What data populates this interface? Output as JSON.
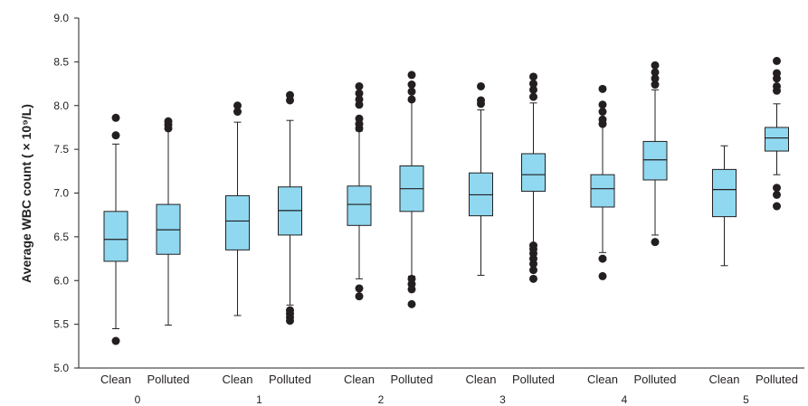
{
  "chart_data": {
    "type": "box",
    "ylabel": "Average WBC count ( × 10⁹/L)",
    "ylim": [
      5.0,
      9.0
    ],
    "yticks": [
      "5.0",
      "5.5",
      "6.0",
      "6.5",
      "7.0",
      "7.5",
      "8.0",
      "8.5",
      "9.0"
    ],
    "groups": [
      "0",
      "1",
      "2",
      "3",
      "4",
      "5"
    ],
    "categories": [
      "Clean",
      "Polluted"
    ],
    "colors": {
      "box_fill": "#8fd8f0",
      "stroke": "#231f20",
      "outlier": "#231f20"
    },
    "boxes": [
      {
        "group": "0",
        "category": "Clean",
        "whisker_low": 5.45,
        "q1": 6.22,
        "median": 6.47,
        "q3": 6.79,
        "whisker_high": 7.56,
        "outliers": [
          5.31,
          7.66,
          7.86
        ]
      },
      {
        "group": "0",
        "category": "Polluted",
        "whisker_low": 5.49,
        "q1": 6.3,
        "median": 6.58,
        "q3": 6.87,
        "whisker_high": 7.72,
        "outliers": [
          7.74,
          7.78,
          7.82
        ]
      },
      {
        "group": "1",
        "category": "Clean",
        "whisker_low": 5.6,
        "q1": 6.35,
        "median": 6.68,
        "q3": 6.97,
        "whisker_high": 7.81,
        "outliers": [
          7.93,
          8.0
        ]
      },
      {
        "group": "1",
        "category": "Polluted",
        "whisker_low": 5.72,
        "q1": 6.52,
        "median": 6.8,
        "q3": 7.07,
        "whisker_high": 7.83,
        "outliers": [
          5.54,
          5.58,
          5.62,
          5.66,
          8.06,
          8.12
        ]
      },
      {
        "group": "2",
        "category": "Clean",
        "whisker_low": 6.02,
        "q1": 6.63,
        "median": 6.87,
        "q3": 7.08,
        "whisker_high": 7.71,
        "outliers": [
          5.82,
          5.91,
          7.74,
          7.79,
          7.85,
          8.01,
          8.07,
          8.14,
          8.22
        ]
      },
      {
        "group": "2",
        "category": "Polluted",
        "whisker_low": 6.05,
        "q1": 6.79,
        "median": 7.05,
        "q3": 7.31,
        "whisker_high": 8.05,
        "outliers": [
          5.73,
          5.9,
          5.96,
          6.02,
          8.07,
          8.16,
          8.24,
          8.35
        ]
      },
      {
        "group": "3",
        "category": "Clean",
        "whisker_low": 6.06,
        "q1": 6.74,
        "median": 6.98,
        "q3": 7.23,
        "whisker_high": 7.95,
        "outliers": [
          8.02,
          8.06,
          8.22
        ]
      },
      {
        "group": "3",
        "category": "Polluted",
        "whisker_low": 6.42,
        "q1": 7.02,
        "median": 7.21,
        "q3": 7.45,
        "whisker_high": 8.03,
        "outliers": [
          6.02,
          6.12,
          6.19,
          6.25,
          6.31,
          6.36,
          6.4,
          8.1,
          8.18,
          8.25,
          8.33
        ]
      },
      {
        "group": "4",
        "category": "Clean",
        "whisker_low": 6.32,
        "q1": 6.84,
        "median": 7.05,
        "q3": 7.21,
        "whisker_high": 7.78,
        "outliers": [
          6.05,
          6.25,
          7.79,
          7.84,
          7.93,
          8.01,
          8.19
        ]
      },
      {
        "group": "4",
        "category": "Polluted",
        "whisker_low": 6.52,
        "q1": 7.15,
        "median": 7.38,
        "q3": 7.59,
        "whisker_high": 8.18,
        "outliers": [
          6.44,
          8.24,
          8.31,
          8.38,
          8.46
        ]
      },
      {
        "group": "5",
        "category": "Clean",
        "whisker_low": 6.17,
        "q1": 6.73,
        "median": 7.04,
        "q3": 7.27,
        "whisker_high": 7.54,
        "outliers": []
      },
      {
        "group": "5",
        "category": "Polluted",
        "whisker_low": 7.21,
        "q1": 7.48,
        "median": 7.63,
        "q3": 7.75,
        "whisker_high": 8.02,
        "outliers": [
          6.85,
          6.98,
          7.06,
          8.17,
          8.22,
          8.31,
          8.37,
          8.51
        ]
      }
    ],
    "grid": false,
    "legend": "none"
  }
}
